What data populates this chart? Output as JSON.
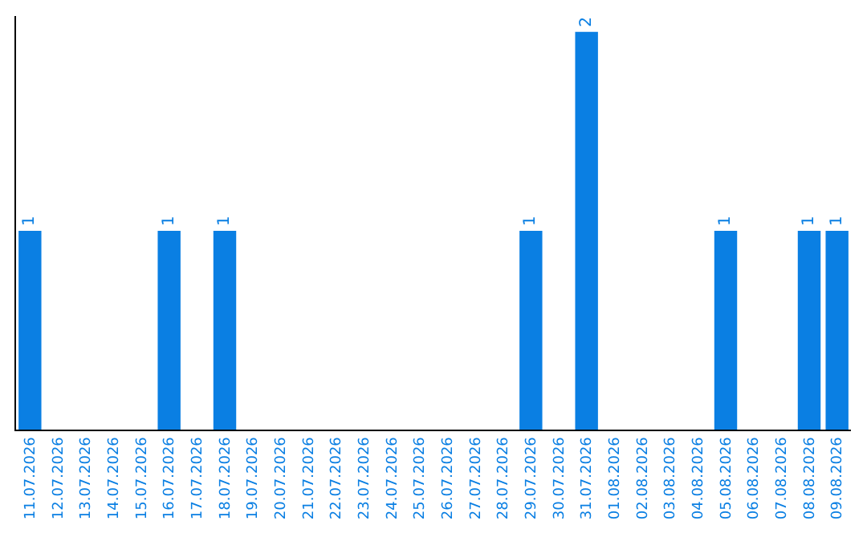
{
  "chart_data": {
    "type": "bar",
    "categories": [
      "11.07.2026",
      "12.07.2026",
      "13.07.2026",
      "14.07.2026",
      "15.07.2026",
      "16.07.2026",
      "17.07.2026",
      "18.07.2026",
      "19.07.2026",
      "20.07.2026",
      "21.07.2026",
      "22.07.2026",
      "23.07.2026",
      "24.07.2026",
      "25.07.2026",
      "26.07.2026",
      "27.07.2026",
      "28.07.2026",
      "29.07.2026",
      "30.07.2026",
      "31.07.2026",
      "01.08.2026",
      "02.08.2026",
      "03.08.2026",
      "04.08.2026",
      "05.08.2026",
      "06.08.2026",
      "07.08.2026",
      "08.08.2026",
      "09.08.2026"
    ],
    "values": [
      1,
      0,
      0,
      0,
      0,
      1,
      0,
      1,
      0,
      0,
      0,
      0,
      0,
      0,
      0,
      0,
      0,
      0,
      1,
      0,
      2,
      0,
      0,
      0,
      0,
      1,
      0,
      0,
      1,
      1
    ],
    "value_labels": [
      "1",
      null,
      null,
      null,
      null,
      "1",
      null,
      "1",
      null,
      null,
      null,
      null,
      null,
      null,
      null,
      null,
      null,
      null,
      "1",
      null,
      "2",
      null,
      null,
      null,
      null,
      "1",
      null,
      null,
      "1",
      "1"
    ],
    "color": "#0a7fe3",
    "ylim": [
      0,
      2.08
    ]
  }
}
